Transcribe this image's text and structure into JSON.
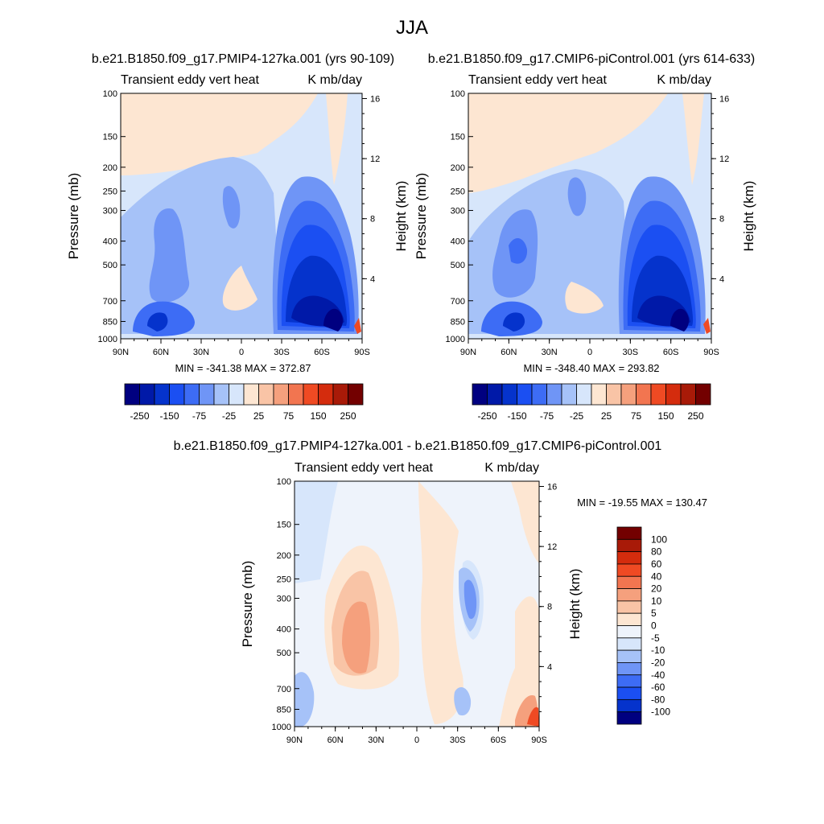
{
  "figure": {
    "title": "JJA"
  },
  "common": {
    "variable_label": "Transient eddy vert heat",
    "units_label": "K mb/day",
    "ylabel_left": "Pressure (mb)",
    "ylabel_right": "Height (km)",
    "pressure_ticks": [
      "100",
      "150",
      "200",
      "250",
      "300",
      "400",
      "500",
      "700",
      "850",
      "1000"
    ],
    "height_ticks": [
      "16",
      "12",
      "8",
      "4"
    ],
    "lat_ticks": [
      "90N",
      "60N",
      "30N",
      "0",
      "30S",
      "60S",
      "90S"
    ]
  },
  "chart_data": [
    {
      "type": "heatmap",
      "panel": "top-left",
      "title": "b.e21.B1850.f09_g17.PMIP4-127ka.001 (yrs 90-109)",
      "stats": "MIN = -341.38  MAX = 372.87",
      "xlim": [
        90,
        -90
      ],
      "ylim": [
        1000,
        100
      ],
      "colorbar_labels": [
        "-250",
        "-150",
        "-75",
        "-25",
        "25",
        "75",
        "150",
        "250"
      ],
      "colors": [
        "#000080",
        "#0019a8",
        "#0533cc",
        "#1b4ff2",
        "#3d6cf5",
        "#6f95f6",
        "#a6c2f8",
        "#d7e6fb",
        "#fde6d2",
        "#f9c4a6",
        "#f5a07d",
        "#f27550",
        "#ef4a23",
        "#d42c0d",
        "#a81a08",
        "#730000"
      ],
      "features": [
        {
          "lat": -72,
          "p": 830,
          "value": -250
        },
        {
          "lat": -50,
          "p": 700,
          "value": -150
        },
        {
          "lat": -45,
          "p": 400,
          "value": -75
        },
        {
          "lat": 50,
          "p": 830,
          "value": -150
        },
        {
          "lat": 40,
          "p": 450,
          "value": -75
        },
        {
          "lat": 15,
          "p": 280,
          "value": -25
        },
        {
          "lat": 0,
          "p": 750,
          "value": 25
        },
        {
          "lat": 65,
          "p": 150,
          "value": 25
        }
      ]
    },
    {
      "type": "heatmap",
      "panel": "top-right",
      "title": "b.e21.B1850.f09_g17.CMIP6-piControl.001 (yrs 614-633)",
      "stats": "MIN = -348.40  MAX = 293.82",
      "xlim": [
        90,
        -90
      ],
      "ylim": [
        1000,
        100
      ],
      "colorbar_labels": [
        "-250",
        "-150",
        "-75",
        "-25",
        "25",
        "75",
        "150",
        "250"
      ],
      "colors": [
        "#000080",
        "#0019a8",
        "#0533cc",
        "#1b4ff2",
        "#3d6cf5",
        "#6f95f6",
        "#a6c2f8",
        "#d7e6fb",
        "#fde6d2",
        "#f9c4a6",
        "#f5a07d",
        "#f27550",
        "#ef4a23",
        "#d42c0d",
        "#a81a08",
        "#730000"
      ],
      "features": [
        {
          "lat": -70,
          "p": 830,
          "value": -250
        },
        {
          "lat": -50,
          "p": 700,
          "value": -150
        },
        {
          "lat": -45,
          "p": 400,
          "value": -75
        },
        {
          "lat": 55,
          "p": 830,
          "value": -150
        },
        {
          "lat": 40,
          "p": 400,
          "value": -75
        },
        {
          "lat": 15,
          "p": 300,
          "value": -25
        },
        {
          "lat": 0,
          "p": 750,
          "value": 25
        },
        {
          "lat": 65,
          "p": 150,
          "value": 25
        }
      ]
    },
    {
      "type": "heatmap",
      "panel": "bottom",
      "title": "b.e21.B1850.f09_g17.PMIP4-127ka.001 - b.e21.B1850.f09_g17.CMIP6-piControl.001",
      "stats": "MIN = -19.55  MAX = 130.47",
      "xlim": [
        90,
        -90
      ],
      "ylim": [
        1000,
        100
      ],
      "colorbar_labels": [
        "100",
        "80",
        "60",
        "40",
        "20",
        "10",
        "5",
        "0",
        "-5",
        "-10",
        "-20",
        "-40",
        "-60",
        "-80",
        "-100"
      ],
      "colors": [
        "#730000",
        "#a81a08",
        "#d42c0d",
        "#ef4a23",
        "#f27550",
        "#f5a07d",
        "#f9c4a6",
        "#fde6d2",
        "#eef3fb",
        "#d7e6fb",
        "#a6c2f8",
        "#6f95f6",
        "#3d6cf5",
        "#1b4ff2",
        "#0533cc",
        "#000080"
      ],
      "features": [
        {
          "lat": 45,
          "p": 450,
          "value": 20
        },
        {
          "lat": -35,
          "p": 330,
          "value": -10
        },
        {
          "lat": -35,
          "p": 800,
          "value": -10
        },
        {
          "lat": -80,
          "p": 870,
          "value": 20
        },
        {
          "lat": 75,
          "p": 600,
          "value": -10
        },
        {
          "lat": 10,
          "p": 500,
          "value": 5
        }
      ]
    }
  ]
}
